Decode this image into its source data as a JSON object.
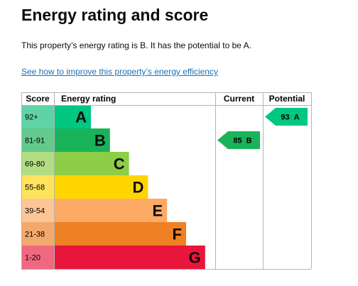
{
  "header": {
    "title": "Energy rating and score"
  },
  "summary": "This property’s energy rating is B. It has the potential to be A.",
  "link": "See how to improve this property’s energy efficiency",
  "epc": {
    "columns": [
      "Score",
      "Energy rating",
      "Current",
      "Potential"
    ],
    "bands": [
      {
        "score": "92+",
        "rating": "A",
        "color": "#00c781",
        "light": "#5fd3a6"
      },
      {
        "score": "81-91",
        "rating": "B",
        "color": "#19b459",
        "light": "#63c98c"
      },
      {
        "score": "69-80",
        "rating": "C",
        "color": "#8dce46",
        "light": "#b3dd83"
      },
      {
        "score": "55-68",
        "rating": "D",
        "color": "#ffd500",
        "light": "#ffe35c"
      },
      {
        "score": "39-54",
        "rating": "E",
        "color": "#fcaa65",
        "light": "#fdc597"
      },
      {
        "score": "21-38",
        "rating": "F",
        "color": "#ef8023",
        "light": "#f4a96c"
      },
      {
        "score": "1-20",
        "rating": "G",
        "color": "#e9153b",
        "light": "#f0687f"
      }
    ],
    "current": {
      "score": 85,
      "rating": "B"
    },
    "potential": {
      "score": 93,
      "rating": "A"
    }
  }
}
